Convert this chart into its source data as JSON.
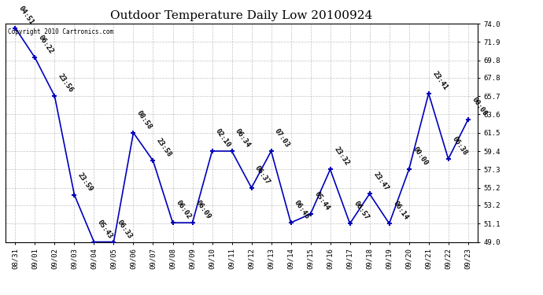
{
  "title": "Outdoor Temperature Daily Low 20100924",
  "copyright_text": "Copyright 2010 Cartronics.com",
  "x_labels": [
    "08/31",
    "09/01",
    "09/02",
    "09/03",
    "09/04",
    "09/05",
    "09/06",
    "09/07",
    "09/08",
    "09/09",
    "09/10",
    "09/11",
    "09/12",
    "09/13",
    "09/14",
    "09/15",
    "09/16",
    "09/17",
    "09/18",
    "09/19",
    "09/20",
    "09/21",
    "09/22",
    "09/23"
  ],
  "y_values": [
    73.5,
    70.1,
    65.7,
    54.4,
    49.0,
    49.0,
    61.5,
    58.3,
    51.2,
    51.2,
    59.4,
    59.4,
    55.2,
    59.4,
    51.2,
    52.2,
    57.3,
    51.1,
    54.5,
    51.1,
    57.3,
    66.0,
    58.5,
    63.0
  ],
  "time_labels": [
    "04:51",
    "06:22",
    "23:56",
    "23:59",
    "05:43",
    "06:33",
    "08:58",
    "23:58",
    "06:02",
    "06:09",
    "02:10",
    "06:34",
    "06:37",
    "07:03",
    "06:46",
    "05:44",
    "23:32",
    "06:57",
    "23:47",
    "06:14",
    "00:00",
    "23:41",
    "06:38",
    "00:00"
  ],
  "line_color": "#0000bb",
  "marker_color": "#0000bb",
  "background_color": "#ffffff",
  "grid_color": "#bbbbbb",
  "ylim": [
    49.0,
    74.0
  ],
  "yticks": [
    49.0,
    51.1,
    53.2,
    55.2,
    57.3,
    59.4,
    61.5,
    63.6,
    65.7,
    67.8,
    69.8,
    71.9,
    74.0
  ],
  "title_fontsize": 11,
  "label_fontsize": 6.5,
  "tick_fontsize": 6.5,
  "label_rotation": -55
}
